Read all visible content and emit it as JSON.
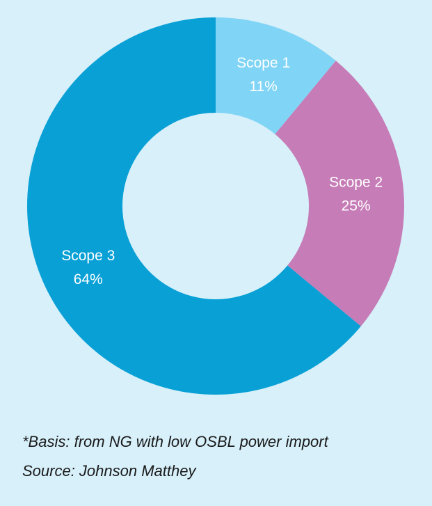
{
  "chart_data": {
    "type": "donut",
    "categories": [
      "Scope 1",
      "Scope 2",
      "Scope 3"
    ],
    "values": [
      11,
      25,
      64
    ],
    "value_labels": [
      "11%",
      "25%",
      "64%"
    ],
    "colors": [
      "#80d4f5",
      "#c67cb7",
      "#09a0d6"
    ],
    "notes": [
      "*Basis: from NG with low OSBL power import",
      "Source: Johnson Matthey"
    ]
  }
}
